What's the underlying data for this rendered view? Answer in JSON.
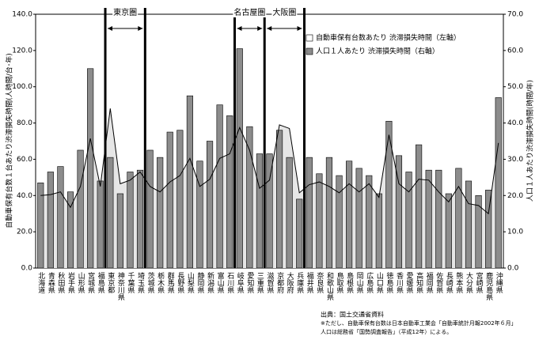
{
  "chart_data": {
    "type": "combo",
    "categories": [
      "北海道",
      "青森県",
      "秋田県",
      "岩手県",
      "山形県",
      "宮城県",
      "福島県",
      "東京都",
      "神奈川県",
      "千葉県",
      "埼玉県",
      "茨城県",
      "栃木県",
      "群馬県",
      "長野県",
      "山梨県",
      "静岡県",
      "新潟県",
      "富山県",
      "石川県",
      "岐阜県",
      "愛知県",
      "三重県",
      "滋賀県",
      "京都府",
      "大阪府",
      "兵庫県",
      "福井県",
      "奈良県",
      "和歌山県",
      "鳥取県",
      "島根県",
      "岡山県",
      "広島県",
      "山口県",
      "徳島県",
      "香川県",
      "愛媛県",
      "高知県",
      "福岡県",
      "佐賀県",
      "長崎県",
      "熊本県",
      "大分県",
      "宮崎県",
      "鹿児島県",
      "沖縄県"
    ],
    "series": [
      {
        "name": "自動車保有台数あたり 渋滞損失時間（左軸）",
        "type": "line",
        "axis": "y",
        "color": "#000000",
        "fill": "#e6e6e6",
        "values": [
          40,
          40.5,
          42,
          33.5,
          45,
          71.5,
          45,
          88,
          46.5,
          48.5,
          53,
          45,
          42,
          47.5,
          51,
          60.5,
          45,
          49,
          60.5,
          63,
          77.5,
          65,
          44,
          48.5,
          79,
          77,
          41.5,
          46,
          47.5,
          45,
          41.5,
          46.5,
          42,
          46.5,
          39,
          73.5,
          46.5,
          42,
          49,
          48.5,
          42,
          36.5,
          45,
          35.5,
          34.5,
          30,
          69
        ]
      },
      {
        "name": "人口１人あたり 渋滞損失時間（右軸）",
        "type": "bar",
        "axis": "y2",
        "color": "#8c8c8c",
        "values": [
          23.5,
          26.5,
          28,
          21,
          32.5,
          55,
          24,
          30.5,
          20.5,
          26.5,
          27,
          32.5,
          30.5,
          37.5,
          38,
          47.5,
          29.5,
          35,
          45,
          42,
          60.5,
          39,
          31.5,
          31.5,
          38,
          30.5,
          19,
          30.5,
          26,
          30.5,
          25.5,
          29.5,
          27.5,
          25.5,
          20.5,
          40.5,
          31,
          26.5,
          34,
          27,
          27,
          20.5,
          27.5,
          24,
          20,
          21.5,
          47
        ]
      }
    ],
    "ylabel": "自動車保有台数１台あたり渋滞損失時間(人時間/台･年)",
    "y2label": "人口１人あたり渋滞損失時間(時間/年)",
    "ylim": [
      0,
      140
    ],
    "yticks": [
      {
        "value": 0,
        "label": "0.0"
      },
      {
        "value": 20,
        "label": "20.0"
      },
      {
        "value": 40,
        "label": "40.0"
      },
      {
        "value": 60,
        "label": "60.0"
      },
      {
        "value": 80,
        "label": "80.0"
      },
      {
        "value": 100,
        "label": "100.0"
      },
      {
        "value": 120,
        "label": "120.0"
      },
      {
        "value": 140,
        "label": "140.0"
      }
    ],
    "y2lim": [
      0,
      70
    ],
    "y2ticks": [
      {
        "value": 0,
        "label": "0.0"
      },
      {
        "value": 10,
        "label": "10.0"
      },
      {
        "value": 20,
        "label": "20.0"
      },
      {
        "value": 30,
        "label": "30.0"
      },
      {
        "value": 40,
        "label": "40.0"
      },
      {
        "value": 50,
        "label": "50.0"
      },
      {
        "value": 60,
        "label": "60.0"
      },
      {
        "value": 70,
        "label": "70.0"
      }
    ],
    "regions": [
      "東京圏",
      "名古屋圏",
      "大阪圏"
    ],
    "notes": [
      "出典：国土交通省資料",
      "※ただし、自動車保有台数は日本自動車工業会「自動車統計月報2002年６月」",
      "人口は総務省「国勢調査報告」（平成12年）による。"
    ]
  }
}
